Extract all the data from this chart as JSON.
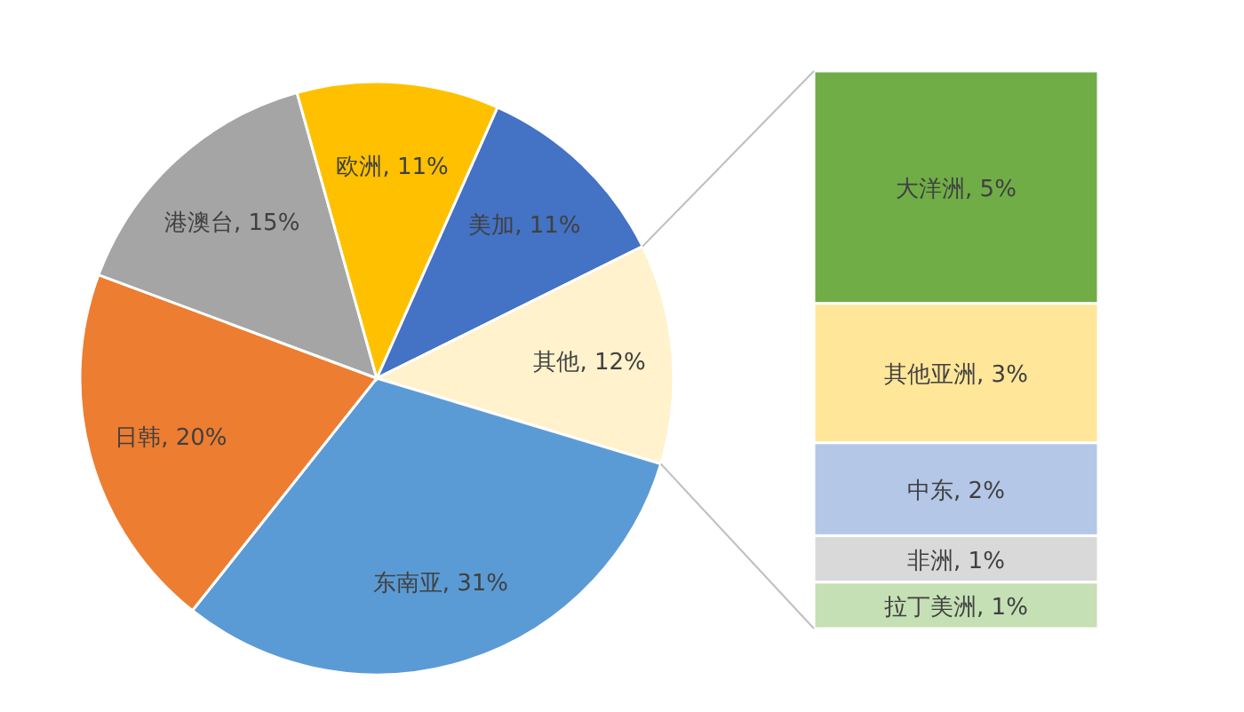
{
  "chart_data": [
    {
      "type": "pie",
      "categories": [
        "美加",
        "其他",
        "东南亚",
        "日韩",
        "港澳台",
        "欧洲"
      ],
      "values": [
        11,
        12,
        31,
        20,
        15,
        11
      ],
      "colors": [
        "#4472c4",
        "#fff2cc",
        "#5b9bd5",
        "#ed7d31",
        "#a5a5a5",
        "#ffc000"
      ],
      "value_labels": [
        "11%",
        "12%",
        "31%",
        "20%",
        "15%",
        "11%"
      ]
    },
    {
      "type": "bar",
      "stacked": true,
      "categories": [
        null
      ],
      "series": [
        {
          "color": "#c5e0b4",
          "values": [
            1
          ],
          "value_labels": [
            "拉丁美洲, 1%"
          ]
        },
        {
          "color": "#d9d9d9",
          "values": [
            1
          ],
          "value_labels": [
            "非洲, 1%"
          ]
        },
        {
          "color": "#b4c7e7",
          "values": [
            2
          ],
          "value_labels": [
            "中东, 2%"
          ]
        },
        {
          "color": "#ffe699",
          "values": [
            3
          ],
          "value_labels": [
            "其他亚洲, 3%"
          ]
        },
        {
          "color": "#70ad47",
          "values": [
            5
          ],
          "value_labels": [
            "大洋洲, 5%"
          ]
        }
      ]
    }
  ]
}
